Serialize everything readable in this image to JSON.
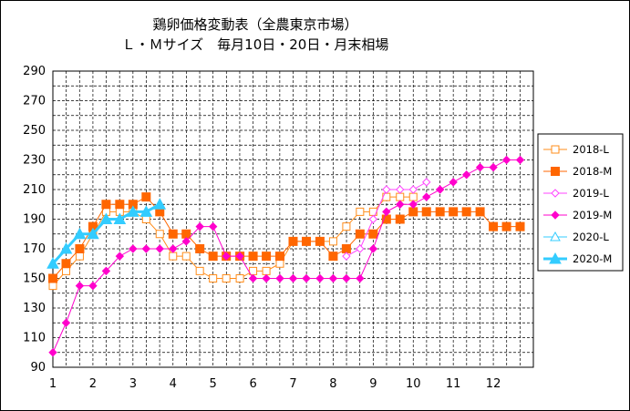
{
  "chart_data": {
    "type": "line",
    "title": "鶏卵価格変動表（全農東京市場）",
    "subtitle": "Ｌ・Ｍサイズ　毎月10日・20日・月末相場",
    "xlabel": "",
    "ylabel": "",
    "ylim": [
      90,
      290
    ],
    "yticks": [
      "90",
      "110",
      "130",
      "150",
      "170",
      "190",
      "210",
      "230",
      "250",
      "270",
      "290"
    ],
    "xticks": [
      "1",
      "2",
      "3",
      "4",
      "5",
      "6",
      "7",
      "8",
      "9",
      "10",
      "11",
      "12"
    ],
    "grid": true,
    "legend_position": "right",
    "x_unit": "month",
    "series": [
      {
        "name": "2018-L",
        "color": "#ff8c1a",
        "marker": "square-open",
        "linewidth": 1,
        "x": [
          1,
          1.33,
          1.67,
          2,
          2.33,
          2.67,
          3,
          3.33,
          3.67,
          4,
          4.33,
          4.67,
          5,
          5.33,
          5.67,
          6,
          6.33,
          6.67,
          7,
          7.33,
          7.67,
          8,
          8.33,
          8.67,
          9,
          9.33,
          9.67,
          10
        ],
        "values": [
          145,
          155,
          165,
          180,
          195,
          195,
          195,
          190,
          180,
          165,
          165,
          155,
          150,
          150,
          150,
          155,
          155,
          160,
          175,
          175,
          175,
          175,
          185,
          195,
          195,
          205,
          205,
          205
        ]
      },
      {
        "name": "2018-M",
        "color": "#ff6600",
        "marker": "square-filled",
        "linewidth": 1,
        "x": [
          1,
          1.33,
          1.67,
          2,
          2.33,
          2.67,
          3,
          3.33,
          3.67,
          4,
          4.33,
          4.67,
          5,
          5.33,
          5.67,
          6,
          6.33,
          6.67,
          7,
          7.33,
          7.67,
          8,
          8.33,
          8.67,
          9,
          9.33,
          9.67,
          10,
          10.33,
          10.67,
          11,
          11.33,
          11.67,
          12,
          12.33,
          12.67
        ],
        "values": [
          150,
          160,
          170,
          185,
          200,
          200,
          200,
          205,
          195,
          180,
          180,
          170,
          165,
          165,
          165,
          165,
          165,
          165,
          175,
          175,
          175,
          165,
          170,
          180,
          180,
          190,
          190,
          195,
          195,
          195,
          195,
          195,
          195,
          185,
          185,
          185
        ]
      },
      {
        "name": "2019-L",
        "color": "#ff44ff",
        "marker": "diamond-open",
        "linewidth": 1,
        "x": [
          8.33,
          8.67,
          9,
          9.33,
          9.67,
          10,
          10.33
        ],
        "values": [
          165,
          170,
          190,
          210,
          210,
          210,
          215
        ]
      },
      {
        "name": "2019-M",
        "color": "#ff00cc",
        "marker": "diamond-filled",
        "linewidth": 1,
        "x": [
          1,
          1.33,
          1.67,
          2,
          2.33,
          2.67,
          3,
          3.33,
          3.67,
          4,
          4.33,
          4.67,
          5,
          5.33,
          5.67,
          6,
          6.33,
          6.67,
          7,
          7.33,
          7.67,
          8,
          8.33,
          8.67,
          9,
          9.33,
          9.67,
          10,
          10.33,
          10.67,
          11,
          11.33,
          11.67,
          12,
          12.33,
          12.67
        ],
        "values": [
          100,
          120,
          145,
          145,
          155,
          165,
          170,
          170,
          170,
          170,
          175,
          185,
          185,
          165,
          165,
          150,
          150,
          150,
          150,
          150,
          150,
          150,
          150,
          150,
          170,
          195,
          200,
          200,
          205,
          210,
          215,
          220,
          225,
          225,
          230,
          230
        ]
      },
      {
        "name": "2020-L",
        "color": "#33ccff",
        "marker": "triangle-open",
        "linewidth": 1,
        "x": [
          1,
          1.33,
          1.67,
          2,
          2.33,
          2.67,
          3,
          3.33,
          3.67
        ],
        "values": [
          160,
          170,
          180,
          180,
          190,
          190,
          195,
          195,
          200
        ]
      },
      {
        "name": "2020-M",
        "color": "#33ccff",
        "marker": "triangle-filled",
        "linewidth": 3,
        "x": [
          1,
          1.33,
          1.67,
          2,
          2.33,
          2.67,
          3,
          3.33,
          3.67
        ],
        "values": [
          160,
          170,
          180,
          180,
          190,
          190,
          195,
          195,
          200
        ]
      }
    ]
  }
}
